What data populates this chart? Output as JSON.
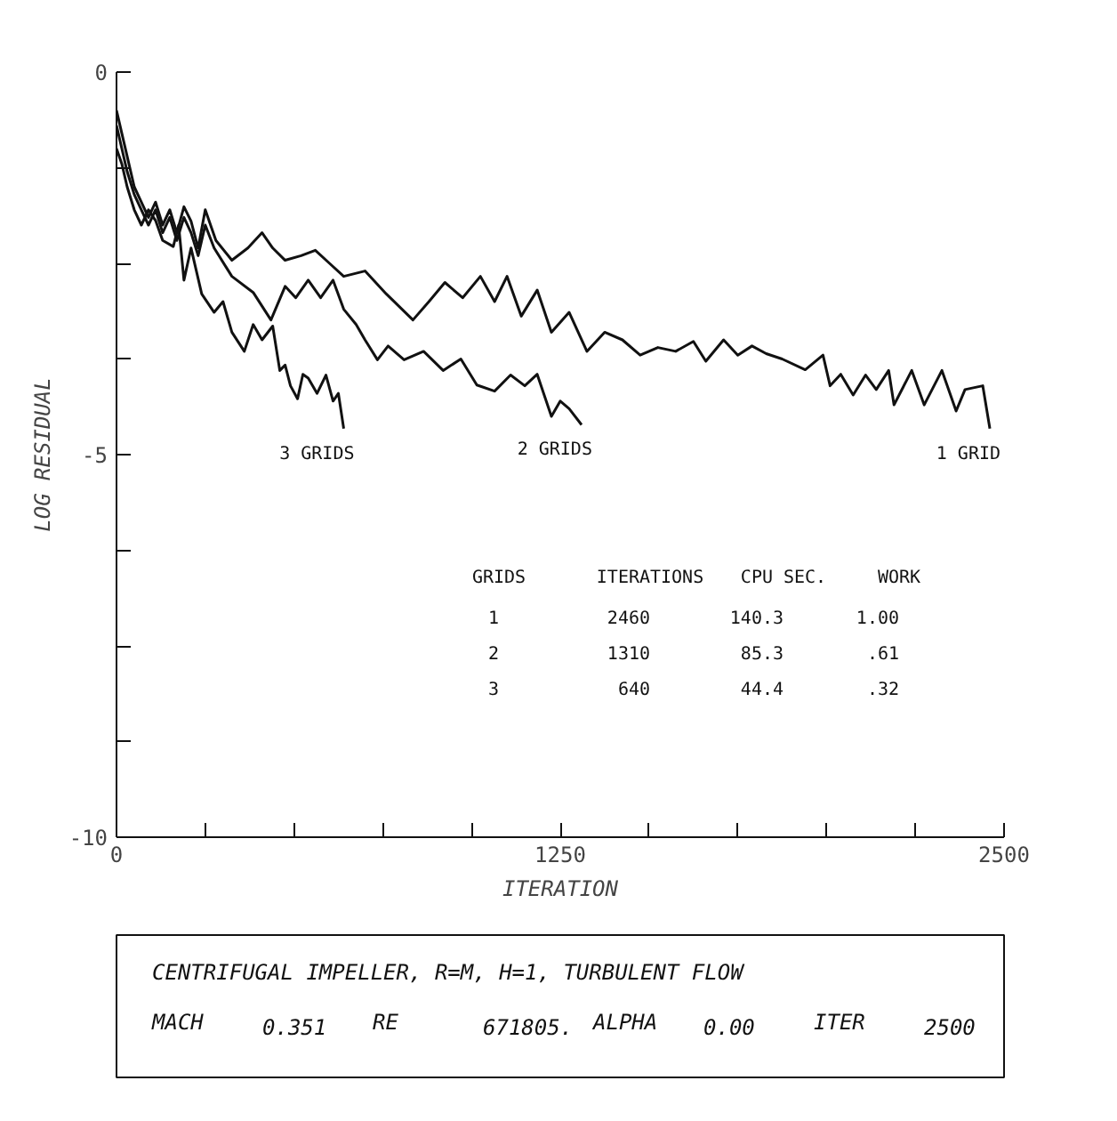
{
  "chart_data": {
    "type": "line",
    "ylabel": "LOG RESIDUAL",
    "xlabel": "ITERATION",
    "xlim": [
      0,
      2500
    ],
    "xticks": [
      0,
      {
        "value": 250,
        "label": null
      },
      {
        "value": 500,
        "label": null
      },
      {
        "value": 750,
        "label": null
      },
      {
        "value": 1000,
        "label": null
      },
      1250,
      {
        "value": 1500,
        "label": null
      },
      {
        "value": 1750,
        "label": null
      },
      {
        "value": 2000,
        "label": null
      },
      {
        "value": 2250,
        "label": null
      },
      2500
    ],
    "ylim": [
      -10,
      0
    ],
    "yticks": [
      0,
      {
        "value": -1.25,
        "label": null
      },
      {
        "value": -2.5,
        "label": null
      },
      {
        "value": -3.75,
        "label": null
      },
      -5,
      {
        "value": -6.25,
        "label": null
      },
      {
        "value": -7.5,
        "label": null
      },
      {
        "value": -8.75,
        "label": null
      },
      -10
    ],
    "grid": false,
    "marker": "none",
    "line_style": "solid",
    "series": [
      {
        "name": "1 GRID",
        "color": "#111111",
        "x": [
          0,
          15,
          30,
          50,
          70,
          90,
          110,
          130,
          150,
          170,
          190,
          210,
          230,
          250,
          280,
          325,
          370,
          410,
          440,
          475,
          520,
          560,
          600,
          640,
          700,
          760,
          835,
          880,
          925,
          975,
          1025,
          1065,
          1100,
          1140,
          1185,
          1225,
          1275,
          1325,
          1375,
          1425,
          1475,
          1525,
          1575,
          1625,
          1660,
          1710,
          1750,
          1790,
          1830,
          1875,
          1940,
          1990,
          2010,
          2040,
          2075,
          2110,
          2140,
          2175,
          2190,
          2240,
          2275,
          2325,
          2365,
          2390,
          2440,
          2460
        ],
        "values": [
          -0.5,
          -0.8,
          -1.1,
          -1.5,
          -1.7,
          -1.9,
          -1.7,
          -2.0,
          -1.8,
          -2.1,
          -1.76,
          -1.95,
          -2.3,
          -1.8,
          -2.2,
          -2.46,
          -2.3,
          -2.1,
          -2.3,
          -2.46,
          -2.4,
          -2.33,
          -2.5,
          -2.67,
          -2.6,
          -2.9,
          -3.24,
          -3.0,
          -2.75,
          -2.95,
          -2.67,
          -3.0,
          -2.67,
          -3.19,
          -2.85,
          -3.4,
          -3.14,
          -3.65,
          -3.4,
          -3.5,
          -3.7,
          -3.6,
          -3.65,
          -3.52,
          -3.78,
          -3.5,
          -3.7,
          -3.58,
          -3.68,
          -3.75,
          -3.89,
          -3.7,
          -4.1,
          -3.95,
          -4.22,
          -3.96,
          -4.15,
          -3.9,
          -4.35,
          -3.9,
          -4.35,
          -3.9,
          -4.43,
          -4.15,
          -4.1,
          -4.66
        ]
      },
      {
        "name": "2 GRIDS",
        "color": "#111111",
        "x": [
          0,
          15,
          30,
          50,
          70,
          90,
          110,
          130,
          150,
          170,
          190,
          210,
          230,
          250,
          275,
          325,
          385,
          435,
          475,
          505,
          540,
          575,
          610,
          640,
          675,
          700,
          735,
          765,
          810,
          865,
          920,
          970,
          1015,
          1065,
          1110,
          1150,
          1185,
          1225,
          1250,
          1275,
          1310
        ],
        "values": [
          -0.7,
          -1.0,
          -1.3,
          -1.6,
          -1.8,
          -2.0,
          -1.8,
          -2.1,
          -1.9,
          -2.2,
          -1.9,
          -2.1,
          -2.4,
          -2.0,
          -2.3,
          -2.67,
          -2.88,
          -3.24,
          -2.8,
          -2.95,
          -2.72,
          -2.95,
          -2.72,
          -3.1,
          -3.3,
          -3.5,
          -3.76,
          -3.58,
          -3.76,
          -3.65,
          -3.9,
          -3.75,
          -4.09,
          -4.17,
          -3.96,
          -4.1,
          -3.95,
          -4.5,
          -4.3,
          -4.4,
          -4.61
        ]
      },
      {
        "name": "3 GRIDS",
        "color": "#111111",
        "x": [
          0,
          15,
          30,
          50,
          70,
          90,
          110,
          130,
          160,
          175,
          190,
          210,
          240,
          275,
          300,
          325,
          360,
          385,
          410,
          440,
          460,
          475,
          490,
          510,
          525,
          540,
          565,
          590,
          610,
          625,
          640
        ],
        "values": [
          -1.0,
          -1.2,
          -1.5,
          -1.8,
          -2.0,
          -1.8,
          -1.94,
          -2.2,
          -2.28,
          -2.0,
          -2.72,
          -2.3,
          -2.9,
          -3.14,
          -3.0,
          -3.4,
          -3.65,
          -3.3,
          -3.5,
          -3.32,
          -3.9,
          -3.83,
          -4.1,
          -4.27,
          -3.95,
          -4.0,
          -4.2,
          -3.96,
          -4.3,
          -4.2,
          -4.66
        ]
      }
    ],
    "annotations": [
      "GRIDS  ITERATIONS  CPU SEC.  WORK",
      "  1       2460      140.3    1.00",
      "  2       1310       85.3     .61",
      "  3        640       44.4     .32",
      "CENTRIFUGAL IMPELLER, R=M, H=1, TURBULENT FLOW",
      "MACH    0.351     RE     671805.    ALPHA    0.00     ITER     2500"
    ]
  }
}
